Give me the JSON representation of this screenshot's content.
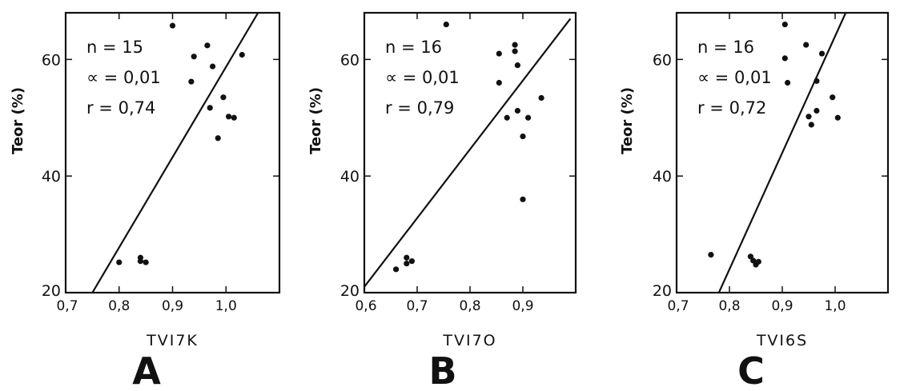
{
  "chart_data": [
    {
      "type": "scatter",
      "panel_label": "A",
      "xlabel": "TVI7K",
      "ylabel": "Teor (%)",
      "xlim": [
        0.7,
        1.1
      ],
      "ylim": [
        20,
        68
      ],
      "xticks": [
        {
          "v": 0.7,
          "label": "0,7"
        },
        {
          "v": 0.8,
          "label": "0,8"
        },
        {
          "v": 0.9,
          "label": "0,9"
        },
        {
          "v": 1.0,
          "label": "1,0"
        }
      ],
      "yticks": [
        {
          "v": 20,
          "label": "20"
        },
        {
          "v": 40,
          "label": "40"
        },
        {
          "v": 60,
          "label": "60"
        }
      ],
      "stats": [
        "n = 15",
        "∝ = 0,01",
        "r = 0,74"
      ],
      "regression_line": [
        [
          0.75,
          20
        ],
        [
          1.06,
          68
        ]
      ],
      "points": [
        {
          "x": 0.8,
          "y": 25.2
        },
        {
          "x": 0.84,
          "y": 26.0
        },
        {
          "x": 0.84,
          "y": 25.4
        },
        {
          "x": 0.85,
          "y": 25.2
        },
        {
          "x": 0.9,
          "y": 65.8
        },
        {
          "x": 0.935,
          "y": 56.2
        },
        {
          "x": 0.94,
          "y": 60.5
        },
        {
          "x": 0.965,
          "y": 62.4
        },
        {
          "x": 0.97,
          "y": 51.7
        },
        {
          "x": 0.975,
          "y": 58.8
        },
        {
          "x": 0.985,
          "y": 46.5
        },
        {
          "x": 0.995,
          "y": 53.5
        },
        {
          "x": 1.005,
          "y": 50.2
        },
        {
          "x": 1.015,
          "y": 50.0
        },
        {
          "x": 1.03,
          "y": 60.8
        }
      ]
    },
    {
      "type": "scatter",
      "panel_label": "B",
      "xlabel": "TVI7O",
      "ylabel": "Teor (%)",
      "xlim": [
        0.6,
        1.0
      ],
      "ylim": [
        20,
        68
      ],
      "xticks": [
        {
          "v": 0.6,
          "label": "0,6"
        },
        {
          "v": 0.7,
          "label": "0,7"
        },
        {
          "v": 0.8,
          "label": "0,8"
        },
        {
          "v": 0.9,
          "label": "0,9"
        }
      ],
      "yticks": [
        {
          "v": 20,
          "label": "20"
        },
        {
          "v": 40,
          "label": "40"
        },
        {
          "v": 60,
          "label": "60"
        }
      ],
      "stats": [
        "n = 16",
        "∝ = 0,01",
        "r = 0,79"
      ],
      "regression_line": [
        [
          0.6,
          21
        ],
        [
          0.99,
          67
        ]
      ],
      "points": [
        {
          "x": 0.66,
          "y": 24.0
        },
        {
          "x": 0.68,
          "y": 26.0
        },
        {
          "x": 0.68,
          "y": 25.0
        },
        {
          "x": 0.69,
          "y": 25.4
        },
        {
          "x": 0.755,
          "y": 66.0
        },
        {
          "x": 0.855,
          "y": 61.0
        },
        {
          "x": 0.855,
          "y": 56.0
        },
        {
          "x": 0.87,
          "y": 50.0
        },
        {
          "x": 0.885,
          "y": 62.5
        },
        {
          "x": 0.885,
          "y": 61.4
        },
        {
          "x": 0.89,
          "y": 59.0
        },
        {
          "x": 0.89,
          "y": 51.2
        },
        {
          "x": 0.9,
          "y": 46.8
        },
        {
          "x": 0.91,
          "y": 50.0
        },
        {
          "x": 0.935,
          "y": 53.4
        },
        {
          "x": 0.9,
          "y": 36.0
        }
      ]
    },
    {
      "type": "scatter",
      "panel_label": "C",
      "xlabel": "TVI6S",
      "ylabel": "Teor (%)",
      "xlim": [
        0.7,
        1.1
      ],
      "ylim": [
        20,
        68
      ],
      "xticks": [
        {
          "v": 0.7,
          "label": "0,7"
        },
        {
          "v": 0.8,
          "label": "0,8"
        },
        {
          "v": 0.9,
          "label": "0,9"
        },
        {
          "v": 1.0,
          "label": "1,0"
        }
      ],
      "yticks": [
        {
          "v": 20,
          "label": "20"
        },
        {
          "v": 40,
          "label": "40"
        },
        {
          "v": 60,
          "label": "60"
        }
      ],
      "stats": [
        "n = 16",
        "∝ = 0,01",
        "r = 0,72"
      ],
      "regression_line": [
        [
          0.78,
          20
        ],
        [
          1.02,
          68
        ]
      ],
      "points": [
        {
          "x": 0.765,
          "y": 26.5
        },
        {
          "x": 0.84,
          "y": 26.2
        },
        {
          "x": 0.845,
          "y": 25.5
        },
        {
          "x": 0.85,
          "y": 24.8
        },
        {
          "x": 0.855,
          "y": 25.3
        },
        {
          "x": 0.905,
          "y": 66.0
        },
        {
          "x": 0.905,
          "y": 60.2
        },
        {
          "x": 0.91,
          "y": 56.0
        },
        {
          "x": 0.945,
          "y": 62.5
        },
        {
          "x": 0.95,
          "y": 50.2
        },
        {
          "x": 0.955,
          "y": 48.8
        },
        {
          "x": 0.965,
          "y": 51.2
        },
        {
          "x": 0.965,
          "y": 56.3
        },
        {
          "x": 0.975,
          "y": 61.0
        },
        {
          "x": 0.995,
          "y": 53.5
        },
        {
          "x": 1.005,
          "y": 50.0
        }
      ]
    }
  ]
}
